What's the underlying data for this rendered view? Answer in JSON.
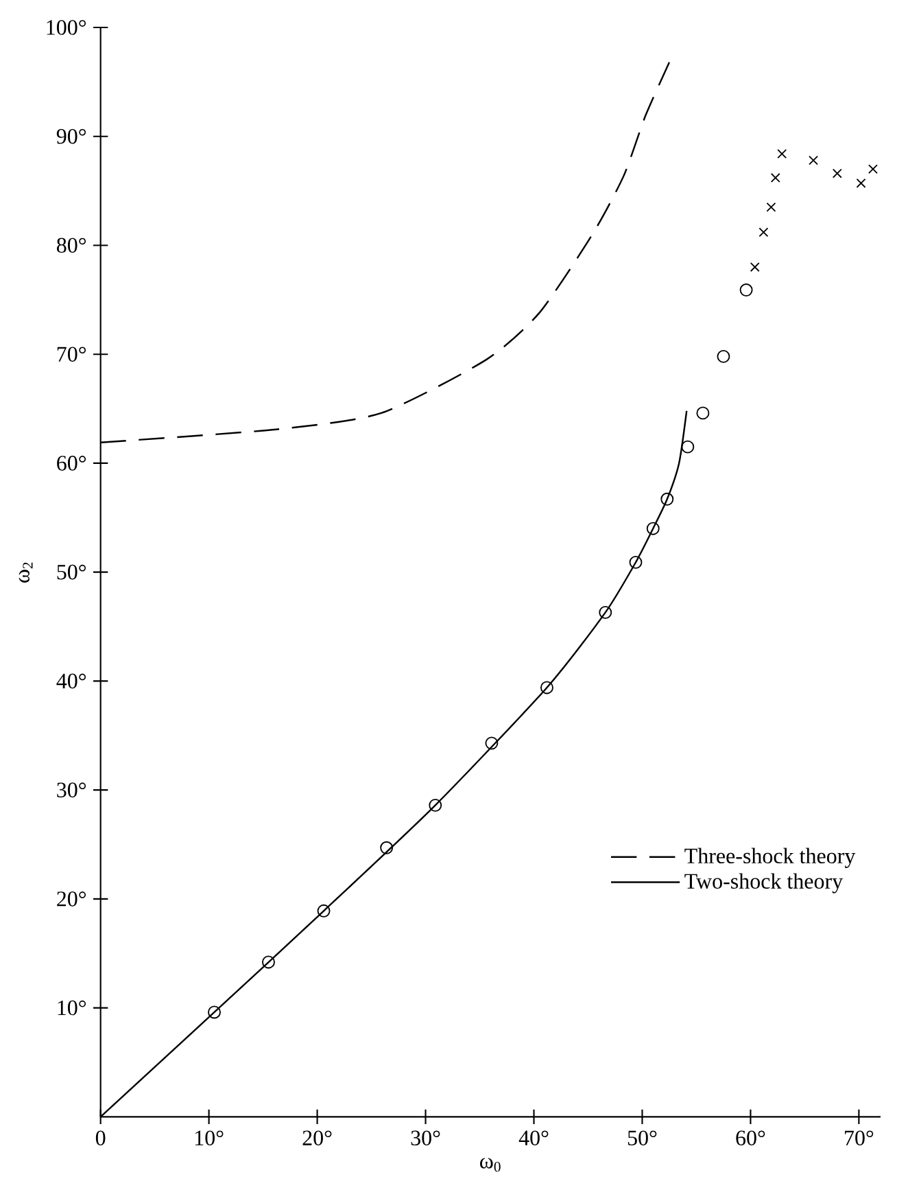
{
  "chart_data": {
    "type": "line",
    "xlabel": "ω$_{0}$",
    "ylabel": "ω$_{2}$",
    "xlim": [
      0,
      72
    ],
    "ylim": [
      0,
      100
    ],
    "xticks": [
      {
        "value": 0,
        "label": "0"
      },
      {
        "value": 10,
        "label": "10°"
      },
      {
        "value": 20,
        "label": "20°"
      },
      {
        "value": 30,
        "label": "30°"
      },
      {
        "value": 40,
        "label": "40°"
      },
      {
        "value": 50,
        "label": "50°"
      },
      {
        "value": 60,
        "label": "60°"
      },
      {
        "value": 70,
        "label": "70°"
      }
    ],
    "yticks": [
      {
        "value": 10,
        "label": "10°"
      },
      {
        "value": 20,
        "label": "20°"
      },
      {
        "value": 30,
        "label": "30°"
      },
      {
        "value": 40,
        "label": "40°"
      },
      {
        "value": 50,
        "label": "50°"
      },
      {
        "value": 60,
        "label": "60°"
      },
      {
        "value": 70,
        "label": "70°"
      },
      {
        "value": 80,
        "label": "80°"
      },
      {
        "value": 90,
        "label": "90°"
      },
      {
        "value": 100,
        "label": "100°"
      }
    ],
    "legend": "bottom right",
    "grid": false,
    "series": [
      {
        "name": "Three-shock theory",
        "line_style": "dashed",
        "color": "#000000",
        "x": [
          0,
          16.2,
          25.9,
          35.6,
          40.5,
          45.4,
          48.3,
          50.3,
          52.5
        ],
        "values": [
          61.9,
          63.1,
          64.6,
          69.5,
          73.8,
          81,
          86.4,
          91.9,
          96.8
        ]
      },
      {
        "name": "Two-shock theory",
        "line_style": "solid",
        "color": "#000000",
        "x": [
          0,
          10.5,
          20.6,
          30.9,
          41.2,
          46.6,
          49.4,
          51,
          52.3,
          53.4,
          54.1
        ],
        "values": [
          0,
          9.6,
          18.9,
          28.6,
          39.4,
          46.3,
          50.9,
          54,
          56.7,
          60,
          64.8
        ]
      },
      {
        "type": "scatter",
        "marker": "circle",
        "color": "#000000",
        "x": [
          10.5,
          15.5,
          20.6,
          26.4,
          30.9,
          36.1,
          41.2,
          46.6,
          49.4,
          51.0,
          52.3,
          54.2,
          55.6,
          57.5,
          59.6
        ],
        "values": [
          9.6,
          14.2,
          18.9,
          24.7,
          28.6,
          34.3,
          39.4,
          46.3,
          50.9,
          54.0,
          56.7,
          61.5,
          64.6,
          69.8,
          75.9
        ]
      },
      {
        "type": "scatter",
        "marker": "cross",
        "color": "#000000",
        "x": [
          60.4,
          61.2,
          61.9,
          62.3,
          62.9,
          65.8,
          68.0,
          70.2,
          71.3
        ],
        "values": [
          78.0,
          81.2,
          83.5,
          86.2,
          88.4,
          87.8,
          86.6,
          85.7,
          87.0
        ]
      }
    ]
  }
}
